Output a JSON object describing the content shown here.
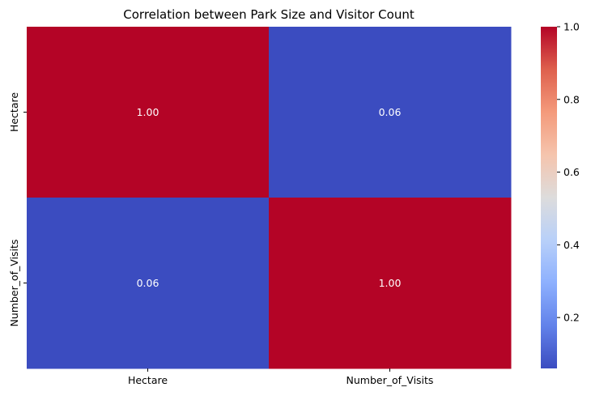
{
  "chart_data": {
    "type": "heatmap",
    "title": "Correlation between Park Size and Visitor Count",
    "x_categories": [
      "Hectare",
      "Number_of_Visits"
    ],
    "y_categories": [
      "Hectare",
      "Number_of_Visits"
    ],
    "values": [
      [
        1.0,
        0.06
      ],
      [
        0.06,
        1.0
      ]
    ],
    "cell_labels": [
      [
        "1.00",
        "0.06"
      ],
      [
        "0.06",
        "1.00"
      ]
    ],
    "colormap": "coolwarm",
    "colorbar": {
      "min": 0.06,
      "max": 1.0,
      "ticks": [
        0.2,
        0.4,
        0.6,
        0.8,
        1.0
      ],
      "tick_labels": [
        "0.2",
        "0.4",
        "0.6",
        "0.8",
        "1.0"
      ]
    },
    "colors": {
      "low": "#3b4cc0",
      "mid": "#dddcdc",
      "high": "#b40426",
      "cell_text": "#ffffff",
      "axis_text": "#000000"
    }
  }
}
